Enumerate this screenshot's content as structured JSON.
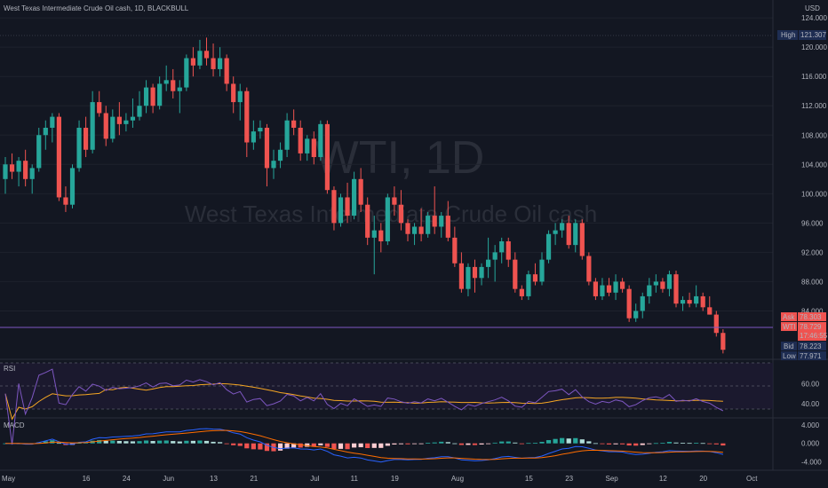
{
  "header": {
    "symbol_line": "West Texas Intermediate Crude Oil cash, 1D, BLACKBULL",
    "currency": "USD"
  },
  "watermark": {
    "symbol": "WTI, 1D",
    "description": "West Texas Intermediate Crude Oil cash"
  },
  "price_badges": {
    "high_label": "High",
    "high_value": "121.307",
    "ask_label": "Ask",
    "ask_value": "78.303",
    "wti_label": "WTI",
    "wti_value": "78.729",
    "countdown": "17:46:55",
    "bid_label": "Bid",
    "bid_value": "78.223",
    "low_label": "Low",
    "low_value": "77.971"
  },
  "panes": {
    "rsi_label": "RSI",
    "macd_label": "MACD"
  },
  "colors": {
    "background": "#131722",
    "up": "#26a69a",
    "down": "#ef5350",
    "grid": "#1e222d",
    "rsi_line": "#7e57c2",
    "rsi_ma": "#f5a623",
    "macd_line": "#2962ff",
    "signal_line": "#ff6d00"
  },
  "chart_data": {
    "type": "candlestick",
    "symbol": "WTI",
    "interval": "1D",
    "y_axis": {
      "ticks": [
        84,
        88,
        92,
        96,
        100,
        104,
        108,
        112,
        116,
        120,
        124
      ],
      "tick_labels": [
        "84.000",
        "88.000",
        "92.000",
        "96.000",
        "100.000",
        "104.000",
        "108.000",
        "112.000",
        "116.000",
        "120.000",
        "124.000"
      ],
      "range": [
        78.0,
        124.5
      ]
    },
    "x_axis": {
      "tick_labels": [
        "May",
        "16",
        "24",
        "Jun",
        "13",
        "21",
        "Jul",
        "11",
        "19",
        "Aug",
        "15",
        "23",
        "Sep",
        "12",
        "20",
        "Oct"
      ]
    },
    "candles": [
      {
        "o": 102.0,
        "h": 105.0,
        "l": 100.0,
        "c": 104.0
      },
      {
        "o": 104.0,
        "h": 105.5,
        "l": 102.0,
        "c": 103.0
      },
      {
        "o": 103.0,
        "h": 105.0,
        "l": 101.0,
        "c": 104.5
      },
      {
        "o": 104.5,
        "h": 106.0,
        "l": 101.0,
        "c": 102.0
      },
      {
        "o": 102.0,
        "h": 104.0,
        "l": 100.0,
        "c": 103.5
      },
      {
        "o": 103.5,
        "h": 109.0,
        "l": 103.0,
        "c": 108.0
      },
      {
        "o": 108.0,
        "h": 110.0,
        "l": 106.0,
        "c": 109.0
      },
      {
        "o": 109.0,
        "h": 111.0,
        "l": 107.0,
        "c": 110.5
      },
      {
        "o": 110.5,
        "h": 111.0,
        "l": 99.0,
        "c": 99.5
      },
      {
        "o": 99.5,
        "h": 101.0,
        "l": 97.5,
        "c": 98.5
      },
      {
        "o": 98.5,
        "h": 104.0,
        "l": 98.0,
        "c": 103.5
      },
      {
        "o": 103.5,
        "h": 110.0,
        "l": 103.0,
        "c": 109.0
      },
      {
        "o": 109.0,
        "h": 110.5,
        "l": 105.0,
        "c": 106.0
      },
      {
        "o": 106.0,
        "h": 114.0,
        "l": 105.5,
        "c": 112.5
      },
      {
        "o": 112.5,
        "h": 114.0,
        "l": 110.5,
        "c": 111.0
      },
      {
        "o": 111.0,
        "h": 112.0,
        "l": 106.5,
        "c": 107.5
      },
      {
        "o": 107.5,
        "h": 111.5,
        "l": 107.0,
        "c": 110.5
      },
      {
        "o": 110.5,
        "h": 112.5,
        "l": 108.0,
        "c": 109.5
      },
      {
        "o": 109.5,
        "h": 111.0,
        "l": 108.5,
        "c": 110.0
      },
      {
        "o": 110.0,
        "h": 113.0,
        "l": 109.0,
        "c": 110.5
      },
      {
        "o": 110.5,
        "h": 114.0,
        "l": 110.0,
        "c": 112.0
      },
      {
        "o": 112.0,
        "h": 115.5,
        "l": 111.0,
        "c": 114.5
      },
      {
        "o": 114.5,
        "h": 115.0,
        "l": 111.0,
        "c": 112.0
      },
      {
        "o": 112.0,
        "h": 116.0,
        "l": 111.5,
        "c": 115.0
      },
      {
        "o": 115.0,
        "h": 117.5,
        "l": 114.0,
        "c": 115.5
      },
      {
        "o": 115.5,
        "h": 117.0,
        "l": 113.0,
        "c": 114.0
      },
      {
        "o": 114.0,
        "h": 115.5,
        "l": 111.0,
        "c": 114.5
      },
      {
        "o": 114.5,
        "h": 119.0,
        "l": 114.0,
        "c": 118.5
      },
      {
        "o": 118.5,
        "h": 120.0,
        "l": 116.0,
        "c": 117.5
      },
      {
        "o": 117.5,
        "h": 121.0,
        "l": 117.0,
        "c": 119.5
      },
      {
        "o": 119.5,
        "h": 121.3,
        "l": 117.5,
        "c": 118.5
      },
      {
        "o": 118.5,
        "h": 120.5,
        "l": 116.0,
        "c": 117.0
      },
      {
        "o": 117.0,
        "h": 120.0,
        "l": 116.0,
        "c": 118.5
      },
      {
        "o": 118.5,
        "h": 119.0,
        "l": 114.0,
        "c": 115.0
      },
      {
        "o": 115.0,
        "h": 116.0,
        "l": 111.0,
        "c": 112.5
      },
      {
        "o": 112.5,
        "h": 115.0,
        "l": 110.0,
        "c": 114.0
      },
      {
        "o": 114.0,
        "h": 114.5,
        "l": 105.0,
        "c": 107.0
      },
      {
        "o": 107.0,
        "h": 110.0,
        "l": 106.0,
        "c": 108.5
      },
      {
        "o": 108.5,
        "h": 110.0,
        "l": 107.5,
        "c": 109.0
      },
      {
        "o": 109.0,
        "h": 109.5,
        "l": 101.0,
        "c": 103.5
      },
      {
        "o": 103.5,
        "h": 106.0,
        "l": 102.0,
        "c": 104.5
      },
      {
        "o": 104.5,
        "h": 107.0,
        "l": 103.5,
        "c": 106.0
      },
      {
        "o": 106.0,
        "h": 111.0,
        "l": 105.0,
        "c": 110.0
      },
      {
        "o": 110.0,
        "h": 111.5,
        "l": 108.0,
        "c": 109.0
      },
      {
        "o": 109.0,
        "h": 110.0,
        "l": 104.5,
        "c": 105.5
      },
      {
        "o": 105.5,
        "h": 108.0,
        "l": 104.5,
        "c": 107.5
      },
      {
        "o": 107.5,
        "h": 108.5,
        "l": 104.0,
        "c": 105.0
      },
      {
        "o": 105.0,
        "h": 110.0,
        "l": 104.5,
        "c": 109.5
      },
      {
        "o": 109.5,
        "h": 110.0,
        "l": 100.0,
        "c": 100.5
      },
      {
        "o": 100.5,
        "h": 101.0,
        "l": 95.0,
        "c": 96.0
      },
      {
        "o": 96.0,
        "h": 100.0,
        "l": 95.5,
        "c": 99.5
      },
      {
        "o": 99.5,
        "h": 101.5,
        "l": 96.0,
        "c": 97.0
      },
      {
        "o": 97.0,
        "h": 103.0,
        "l": 96.5,
        "c": 102.0
      },
      {
        "o": 102.0,
        "h": 103.5,
        "l": 97.5,
        "c": 98.5
      },
      {
        "o": 98.5,
        "h": 99.5,
        "l": 93.0,
        "c": 94.0
      },
      {
        "o": 94.0,
        "h": 97.0,
        "l": 89.0,
        "c": 95.0
      },
      {
        "o": 95.0,
        "h": 96.0,
        "l": 92.0,
        "c": 93.5
      },
      {
        "o": 93.5,
        "h": 100.0,
        "l": 93.0,
        "c": 99.5
      },
      {
        "o": 99.5,
        "h": 101.0,
        "l": 97.0,
        "c": 98.5
      },
      {
        "o": 98.5,
        "h": 100.5,
        "l": 95.0,
        "c": 96.0
      },
      {
        "o": 96.0,
        "h": 96.5,
        "l": 93.5,
        "c": 94.5
      },
      {
        "o": 94.5,
        "h": 96.0,
        "l": 93.0,
        "c": 95.5
      },
      {
        "o": 95.5,
        "h": 98.0,
        "l": 93.5,
        "c": 94.5
      },
      {
        "o": 94.5,
        "h": 97.5,
        "l": 94.0,
        "c": 97.0
      },
      {
        "o": 97.0,
        "h": 101.0,
        "l": 94.5,
        "c": 95.5
      },
      {
        "o": 95.5,
        "h": 97.5,
        "l": 94.0,
        "c": 97.0
      },
      {
        "o": 97.0,
        "h": 99.0,
        "l": 93.5,
        "c": 94.0
      },
      {
        "o": 94.0,
        "h": 95.5,
        "l": 90.0,
        "c": 90.5
      },
      {
        "o": 90.5,
        "h": 92.0,
        "l": 86.5,
        "c": 87.0
      },
      {
        "o": 87.0,
        "h": 90.5,
        "l": 86.0,
        "c": 90.0
      },
      {
        "o": 90.0,
        "h": 91.0,
        "l": 86.5,
        "c": 88.5
      },
      {
        "o": 88.5,
        "h": 90.5,
        "l": 87.5,
        "c": 90.0
      },
      {
        "o": 90.0,
        "h": 94.0,
        "l": 88.5,
        "c": 91.0
      },
      {
        "o": 91.0,
        "h": 93.0,
        "l": 88.0,
        "c": 92.0
      },
      {
        "o": 92.0,
        "h": 94.0,
        "l": 90.5,
        "c": 93.5
      },
      {
        "o": 93.5,
        "h": 94.0,
        "l": 90.0,
        "c": 91.0
      },
      {
        "o": 91.0,
        "h": 92.0,
        "l": 86.5,
        "c": 87.0
      },
      {
        "o": 87.0,
        "h": 87.5,
        "l": 85.5,
        "c": 86.0
      },
      {
        "o": 86.0,
        "h": 89.5,
        "l": 85.5,
        "c": 89.0
      },
      {
        "o": 89.0,
        "h": 90.5,
        "l": 87.5,
        "c": 88.0
      },
      {
        "o": 88.0,
        "h": 92.0,
        "l": 87.5,
        "c": 91.0
      },
      {
        "o": 91.0,
        "h": 95.0,
        "l": 90.5,
        "c": 94.5
      },
      {
        "o": 94.5,
        "h": 96.0,
        "l": 93.0,
        "c": 95.0
      },
      {
        "o": 95.0,
        "h": 96.5,
        "l": 94.0,
        "c": 96.0
      },
      {
        "o": 96.0,
        "h": 97.0,
        "l": 92.5,
        "c": 93.0
      },
      {
        "o": 93.0,
        "h": 96.5,
        "l": 92.0,
        "c": 96.0
      },
      {
        "o": 96.0,
        "h": 96.5,
        "l": 91.0,
        "c": 91.5
      },
      {
        "o": 91.5,
        "h": 92.0,
        "l": 87.5,
        "c": 88.0
      },
      {
        "o": 88.0,
        "h": 88.5,
        "l": 85.5,
        "c": 86.0
      },
      {
        "o": 86.0,
        "h": 88.5,
        "l": 85.5,
        "c": 87.5
      },
      {
        "o": 87.5,
        "h": 88.5,
        "l": 86.0,
        "c": 86.5
      },
      {
        "o": 86.5,
        "h": 89.0,
        "l": 85.5,
        "c": 88.0
      },
      {
        "o": 88.0,
        "h": 88.5,
        "l": 86.5,
        "c": 87.0
      },
      {
        "o": 87.0,
        "h": 87.5,
        "l": 82.5,
        "c": 83.0
      },
      {
        "o": 83.0,
        "h": 85.0,
        "l": 82.5,
        "c": 84.0
      },
      {
        "o": 84.0,
        "h": 86.5,
        "l": 83.0,
        "c": 86.0
      },
      {
        "o": 86.0,
        "h": 88.5,
        "l": 85.0,
        "c": 87.5
      },
      {
        "o": 87.5,
        "h": 89.0,
        "l": 86.5,
        "c": 88.0
      },
      {
        "o": 88.0,
        "h": 88.5,
        "l": 86.5,
        "c": 87.0
      },
      {
        "o": 87.0,
        "h": 89.5,
        "l": 86.0,
        "c": 89.0
      },
      {
        "o": 89.0,
        "h": 89.5,
        "l": 84.5,
        "c": 85.0
      },
      {
        "o": 85.0,
        "h": 86.0,
        "l": 84.0,
        "c": 85.5
      },
      {
        "o": 85.5,
        "h": 86.5,
        "l": 84.5,
        "c": 85.0
      },
      {
        "o": 85.0,
        "h": 87.5,
        "l": 84.5,
        "c": 86.0
      },
      {
        "o": 86.0,
        "h": 86.5,
        "l": 84.0,
        "c": 84.5
      },
      {
        "o": 84.5,
        "h": 86.0,
        "l": 83.5,
        "c": 83.5
      },
      {
        "o": 83.5,
        "h": 84.0,
        "l": 80.5,
        "c": 81.0
      },
      {
        "o": 81.0,
        "h": 81.5,
        "l": 78.2,
        "c": 78.7
      }
    ],
    "rsi": {
      "label": "RSI",
      "levels": [
        70,
        50,
        30
      ],
      "ticks": [
        40,
        60
      ],
      "tick_labels": [
        "40.00",
        "60.00"
      ],
      "range": [
        28,
        82
      ]
    },
    "macd": {
      "label": "MACD",
      "ticks": [
        -4,
        0,
        4
      ],
      "tick_labels": [
        "-4.000",
        "0.000",
        "4.000"
      ],
      "range": [
        -5.5,
        5.0
      ]
    }
  }
}
